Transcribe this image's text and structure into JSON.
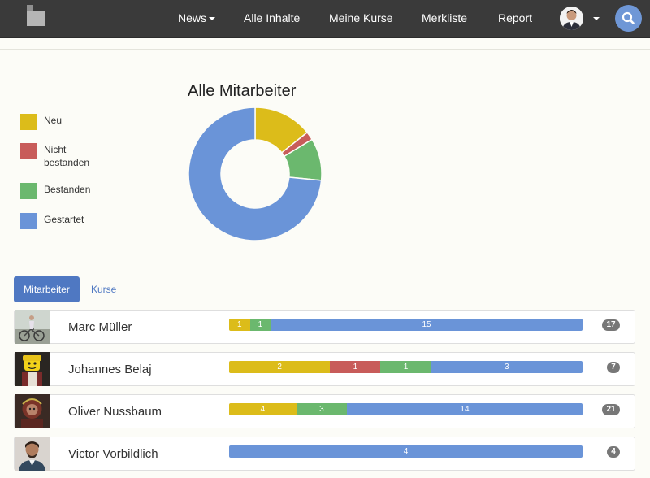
{
  "nav": {
    "items": [
      "News",
      "Alle Inhalte",
      "Meine Kurse",
      "Merkliste",
      "Report"
    ]
  },
  "legend": [
    {
      "label": "Neu",
      "color": "#dcbc1a"
    },
    {
      "label": "Nicht bestanden",
      "color": "#c85c5a"
    },
    {
      "label": "Bestanden",
      "color": "#6bb86e"
    },
    {
      "label": "Gestartet",
      "color": "#6a94d8"
    }
  ],
  "chart_data": {
    "type": "pie",
    "title": "Alle Mitarbeiter",
    "categories": [
      "Neu",
      "Nicht bestanden",
      "Bestanden",
      "Gestartet"
    ],
    "values": [
      7,
      1,
      5,
      36
    ],
    "colors": [
      "#dcbc1a",
      "#c85c5a",
      "#6bb86e",
      "#6a94d8"
    ]
  },
  "tabs": [
    "Mitarbeiter",
    "Kurse"
  ],
  "rows": [
    {
      "name": "Marc Müller",
      "count": "17",
      "segments": [
        {
          "status": "Neu",
          "value": 1
        },
        {
          "status": "Bestanden",
          "value": 1
        },
        {
          "status": "Gestartet",
          "value": 15
        }
      ]
    },
    {
      "name": "Johannes Belaj",
      "count": "7",
      "segments": [
        {
          "status": "Neu",
          "value": 2
        },
        {
          "status": "Nicht bestanden",
          "value": 1
        },
        {
          "status": "Bestanden",
          "value": 1
        },
        {
          "status": "Gestartet",
          "value": 3
        }
      ]
    },
    {
      "name": "Oliver Nussbaum",
      "count": "21",
      "segments": [
        {
          "status": "Neu",
          "value": 4
        },
        {
          "status": "Bestanden",
          "value": 3
        },
        {
          "status": "Gestartet",
          "value": 14
        }
      ]
    },
    {
      "name": "Victor Vorbildlich",
      "count": "4",
      "segments": [
        {
          "status": "Gestartet",
          "value": 4
        }
      ]
    }
  ]
}
